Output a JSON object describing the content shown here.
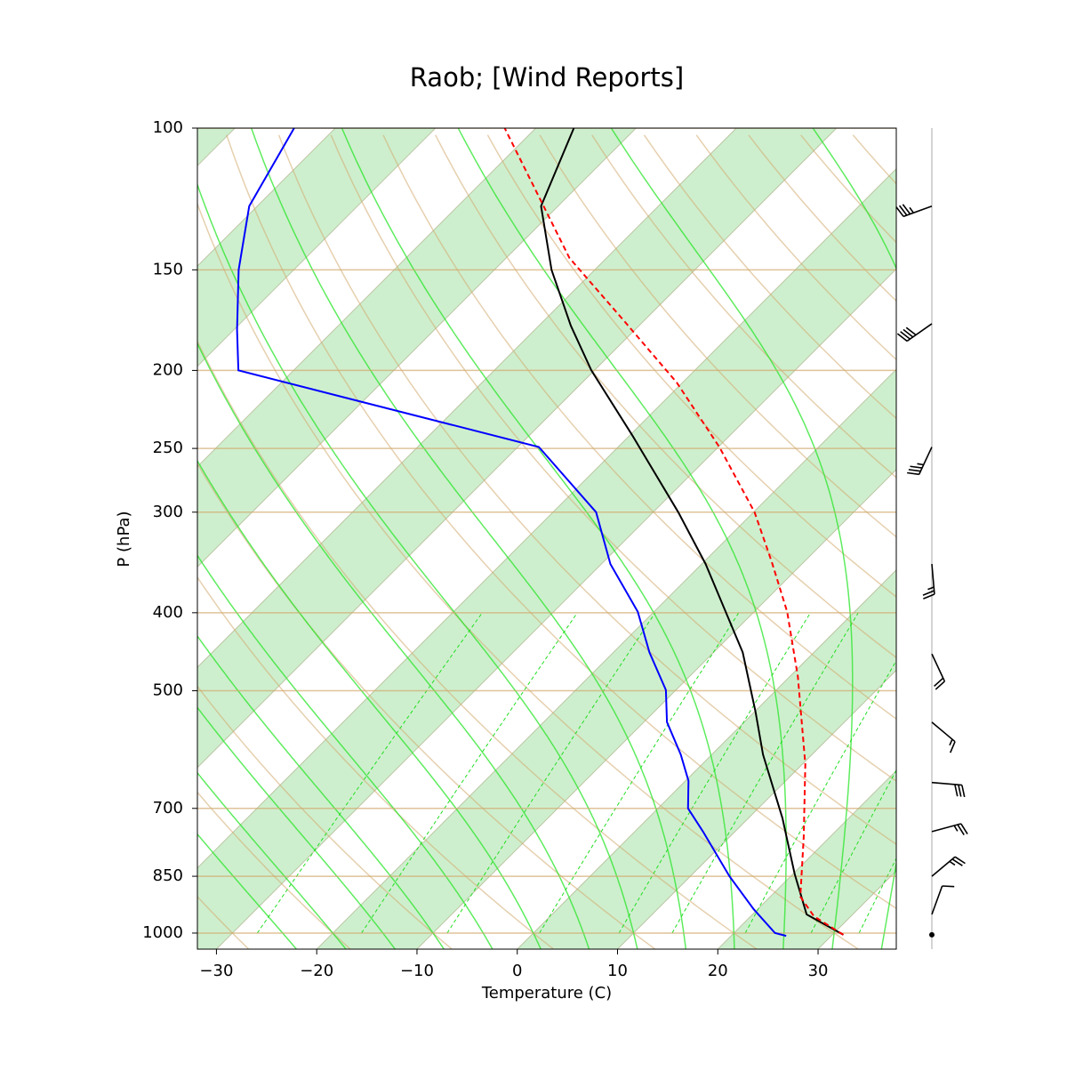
{
  "chart_data": {
    "type": "skewt",
    "title": "Raob; [Wind Reports]",
    "x_label": "Temperature (C)",
    "y_label": "P (hPa)",
    "xlim": [
      -31.9,
      37.8
    ],
    "ylim": [
      1047,
      100
    ],
    "y_log": true,
    "grid": true,
    "xticks": [
      {
        "value": -30,
        "label": "−30"
      },
      {
        "value": -20,
        "label": "−20"
      },
      {
        "value": -10,
        "label": "−10"
      },
      0,
      10,
      20,
      30
    ],
    "yticks": [
      100,
      150,
      200,
      250,
      300,
      400,
      500,
      700,
      850,
      1000
    ],
    "series": [
      {
        "color": "#000000",
        "dash": false,
        "pressure": [
          1005,
          948,
          845,
          793,
          720,
          600,
          531,
          448,
          348,
          300,
          241,
          200,
          176,
          150,
          125,
          100
        ],
        "values": [
          31.1,
          25.4,
          20.2,
          17.5,
          13.4,
          5.1,
          0.1,
          -7.1,
          -19.6,
          -27.5,
          -39.7,
          -50.3,
          -56.8,
          -64.3,
          -71.7,
          -76.2
        ]
      },
      {
        "color": "#0000ff",
        "dash": false,
        "pressure": [
          1008,
          1000,
          934,
          850,
          748,
          700,
          647,
          600,
          547,
          499,
          448,
          399,
          348,
          300,
          249,
          200,
          178,
          150,
          125,
          100
        ],
        "values": [
          25.5,
          24.1,
          19.6,
          13.9,
          6.8,
          3.0,
          0.3,
          -3.1,
          -7.7,
          -11.0,
          -16.4,
          -21.6,
          -29.1,
          -35.7,
          -47.9,
          -85.5,
          -89.7,
          -95.5,
          -100.8,
          -104.1
        ]
      },
      {
        "color": "#ff0000",
        "dash": true,
        "pressure": [
          1005,
          953,
          901,
          760,
          617,
          480,
          399,
          346,
          300,
          249,
          207,
          173,
          145,
          100
        ],
        "values": [
          31.1,
          26.3,
          23.0,
          17.4,
          10.3,
          0.8,
          -6.7,
          -13.2,
          -19.9,
          -29.9,
          -40.6,
          -52.2,
          -63.7,
          -83.1
        ]
      }
    ],
    "wind": {
      "pressure": [
        1005,
        948,
        850,
        748,
        650,
        547,
        450,
        348,
        249,
        175,
        125
      ],
      "speed": [
        0,
        10,
        25,
        25,
        30,
        15,
        20,
        25,
        35,
        40,
        35
      ],
      "direction": [
        0,
        20,
        50,
        75,
        95,
        130,
        155,
        175,
        205,
        235,
        250
      ]
    }
  }
}
